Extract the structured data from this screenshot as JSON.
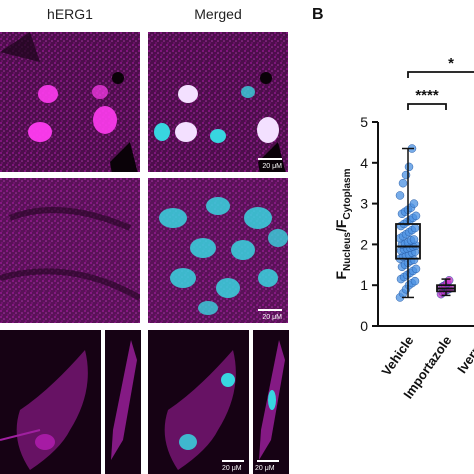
{
  "panelA": {
    "col1_title": "hERG1",
    "col2_title": "Merged",
    "scalebar_label": "20 μM"
  },
  "panelB": {
    "letter": "B"
  },
  "colors": {
    "magenta": "#c21fbf",
    "cyan": "#38d6e0",
    "dark": "#1a0418",
    "point_blue": "#4a90e2",
    "point_magenta": "#c832c8"
  },
  "chart_data": {
    "type": "box",
    "ylabel": "F_Nucleus/F_Cytoplasm",
    "ylabel_main1": "F",
    "ylabel_sub1": "Nucleus",
    "ylabel_slash": "/F",
    "ylabel_sub2": "Cytoplasm",
    "ylim": [
      0,
      5
    ],
    "yticks": [
      "0",
      "1",
      "2",
      "3",
      "4",
      "5"
    ],
    "categories": [
      "Vehicle",
      "Importazole",
      "Iverme"
    ],
    "boxes": [
      {
        "category": "Vehicle",
        "min": 0.7,
        "q1": 1.65,
        "median": 1.95,
        "q3": 2.5,
        "max": 4.35
      },
      {
        "category": "Importazole",
        "min": 0.75,
        "q1": 0.85,
        "median": 0.92,
        "q3": 1.0,
        "max": 1.15
      }
    ],
    "points": {
      "Vehicle": [
        0.7,
        0.8,
        0.9,
        1.0,
        1.05,
        1.1,
        1.15,
        1.2,
        1.25,
        1.3,
        1.35,
        1.4,
        1.45,
        1.5,
        1.55,
        1.6,
        1.62,
        1.65,
        1.7,
        1.72,
        1.75,
        1.8,
        1.82,
        1.85,
        1.88,
        1.9,
        1.92,
        1.95,
        1.97,
        2.0,
        2.02,
        2.05,
        2.1,
        2.12,
        2.15,
        2.2,
        2.25,
        2.3,
        2.35,
        2.4,
        2.45,
        2.5,
        2.55,
        2.6,
        2.65,
        2.7,
        2.75,
        2.8,
        2.85,
        2.9,
        3.0,
        3.2,
        3.5,
        3.7,
        3.9,
        4.35
      ],
      "Importazole": [
        0.78,
        0.82,
        0.85,
        0.88,
        0.9,
        0.92,
        0.95,
        0.98,
        1.0,
        1.05,
        1.12
      ]
    },
    "significance": [
      {
        "label": "****",
        "from": "Vehicle",
        "to": "Importazole"
      },
      {
        "label": "*",
        "from": "Vehicle",
        "to": "Iverme"
      }
    ]
  }
}
